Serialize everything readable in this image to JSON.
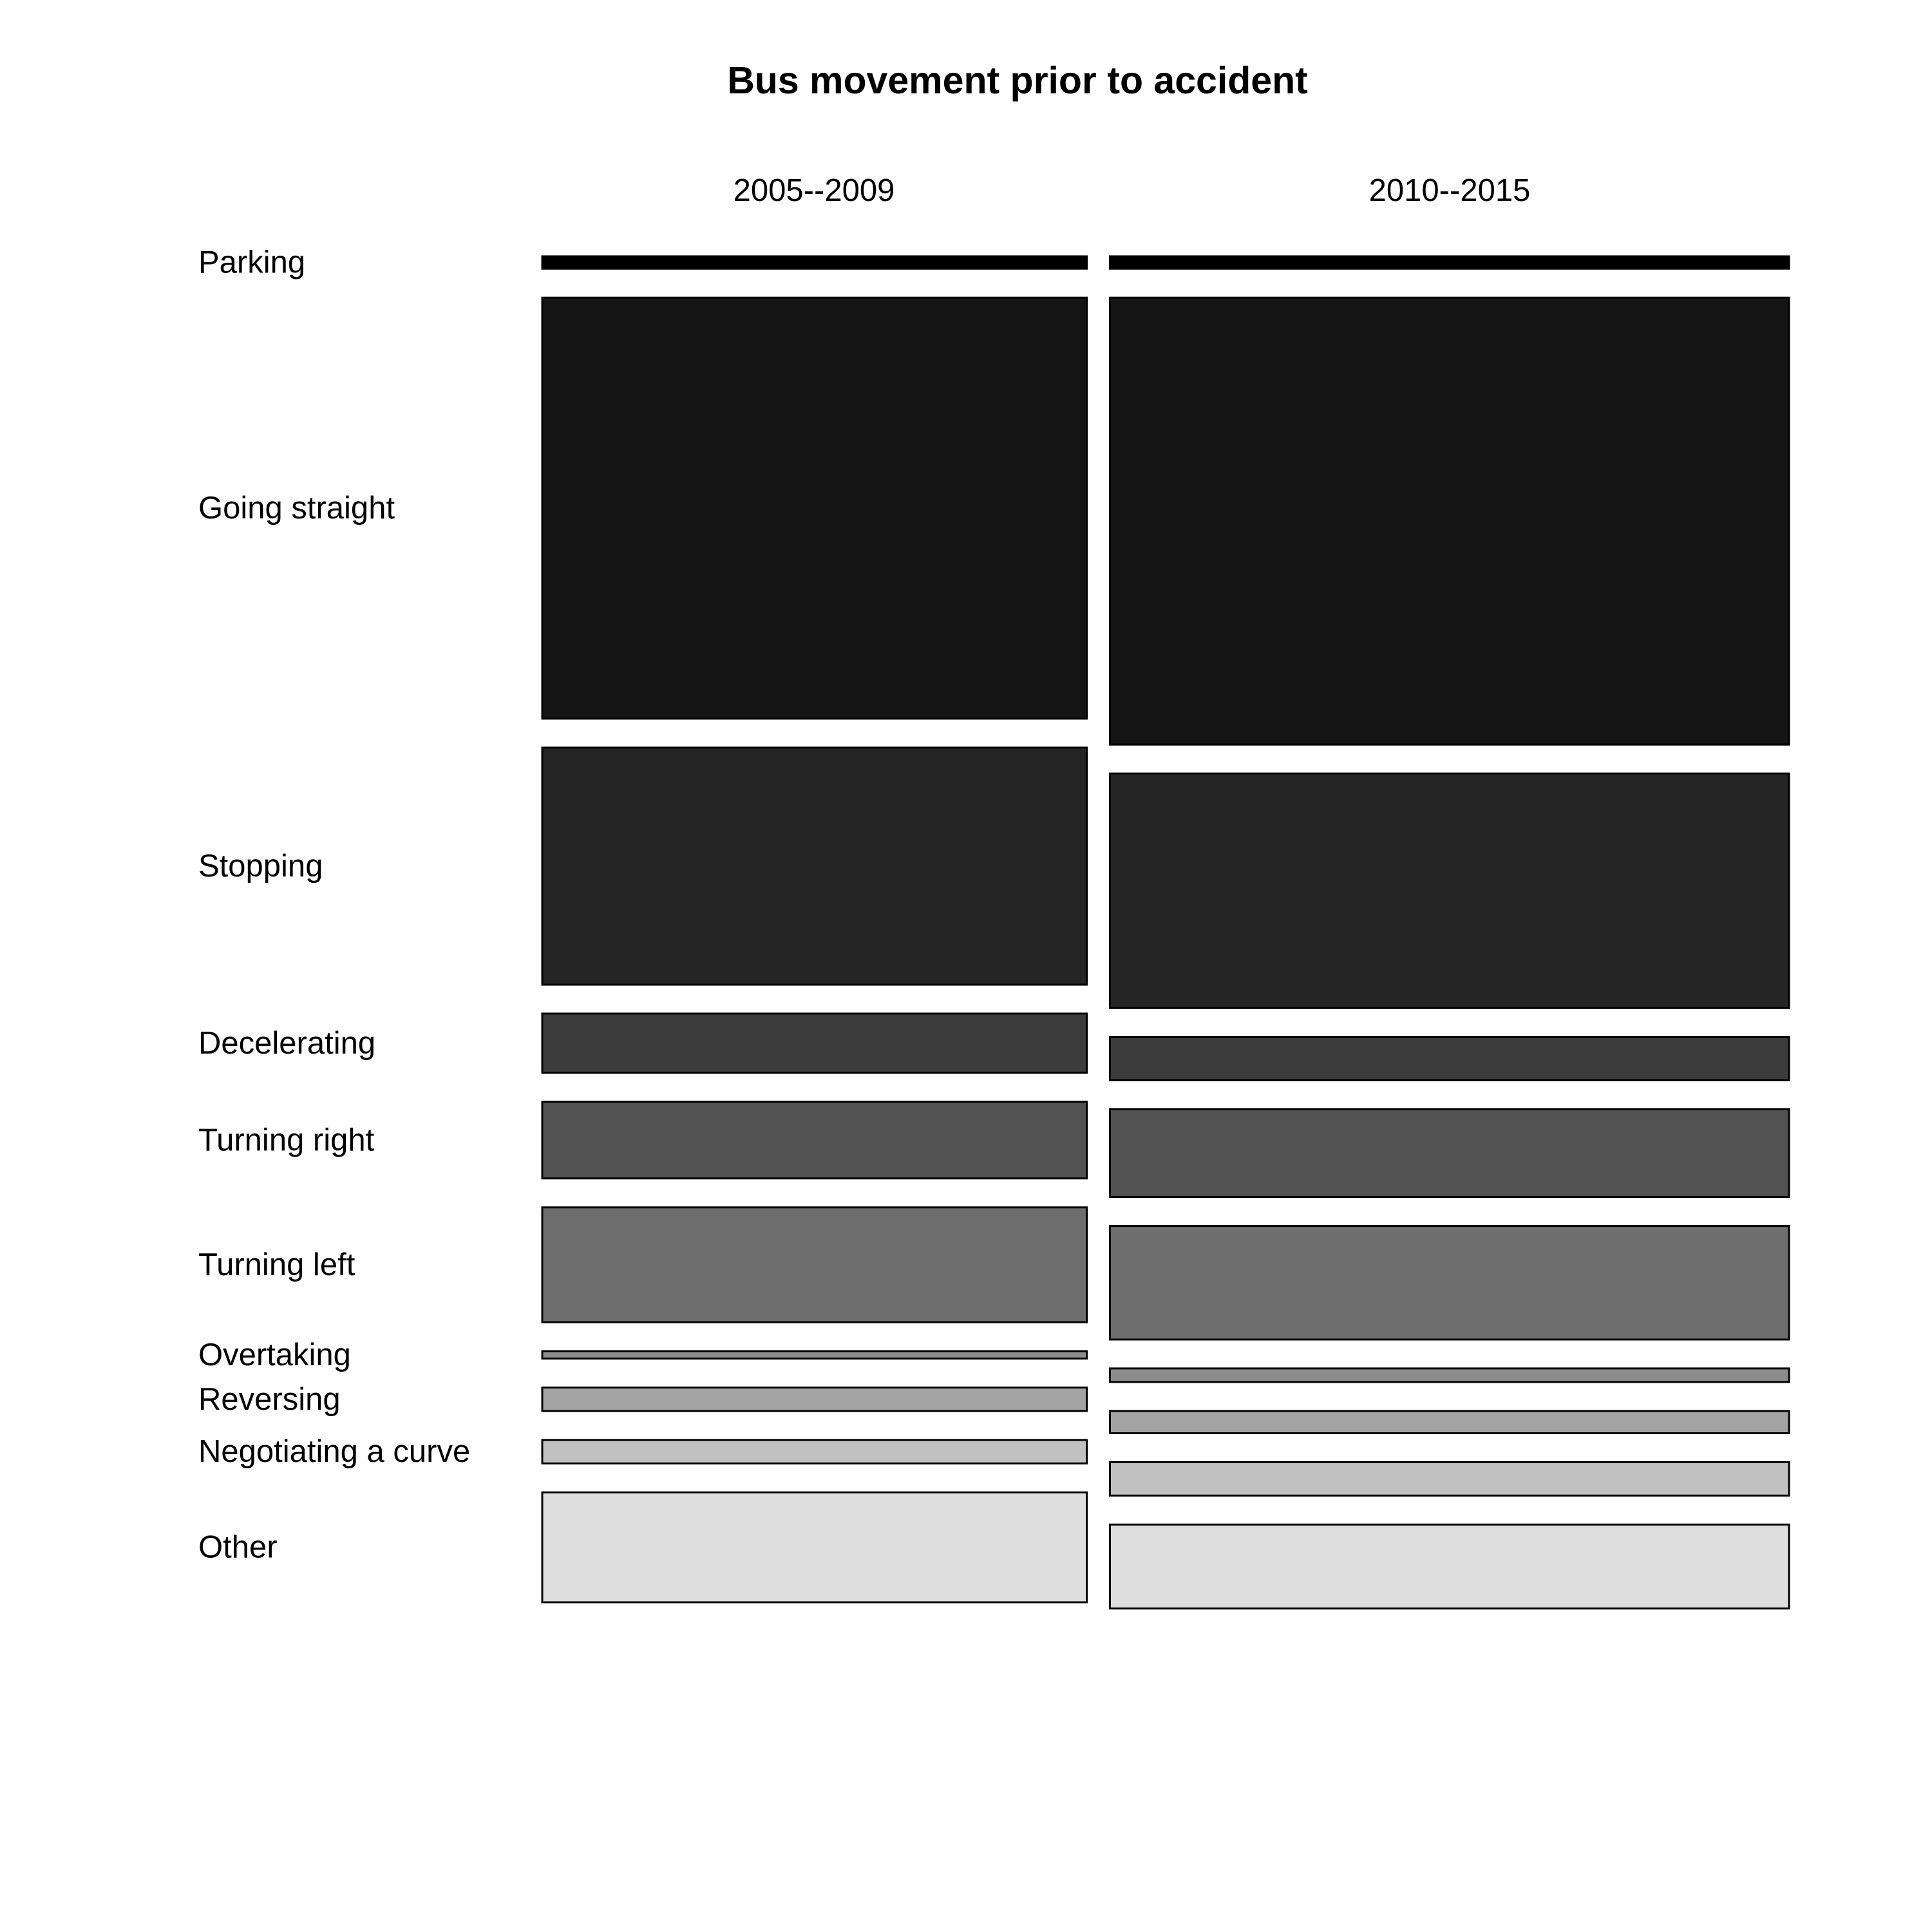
{
  "chart_data": {
    "type": "mosaic",
    "title": "Bus movement prior to accident",
    "columns": [
      {
        "label": "2005--2009",
        "share": 0.445
      },
      {
        "label": "2010--2015",
        "share": 0.555
      }
    ],
    "categories": [
      "Parking",
      "Going straight",
      "Stopping",
      "Decelerating",
      "Turning right",
      "Turning left",
      "Overtaking",
      "Reversing",
      "Negotiating a curve",
      "Other"
    ],
    "colors": [
      "#000000",
      "#151515",
      "#252525",
      "#3c3c3c",
      "#525252",
      "#6e6e6e",
      "#8c8c8c",
      "#a3a3a3",
      "#c1c1c1",
      "#dedede"
    ],
    "series": [
      {
        "name": "2005--2009",
        "values": [
          0.01,
          0.341,
          0.192,
          0.048,
          0.062,
          0.093,
          0.006,
          0.019,
          0.019,
          0.089
        ]
      },
      {
        "name": "2010--2015",
        "values": [
          0.01,
          0.362,
          0.19,
          0.035,
          0.071,
          0.092,
          0.011,
          0.018,
          0.027,
          0.068
        ]
      }
    ]
  }
}
